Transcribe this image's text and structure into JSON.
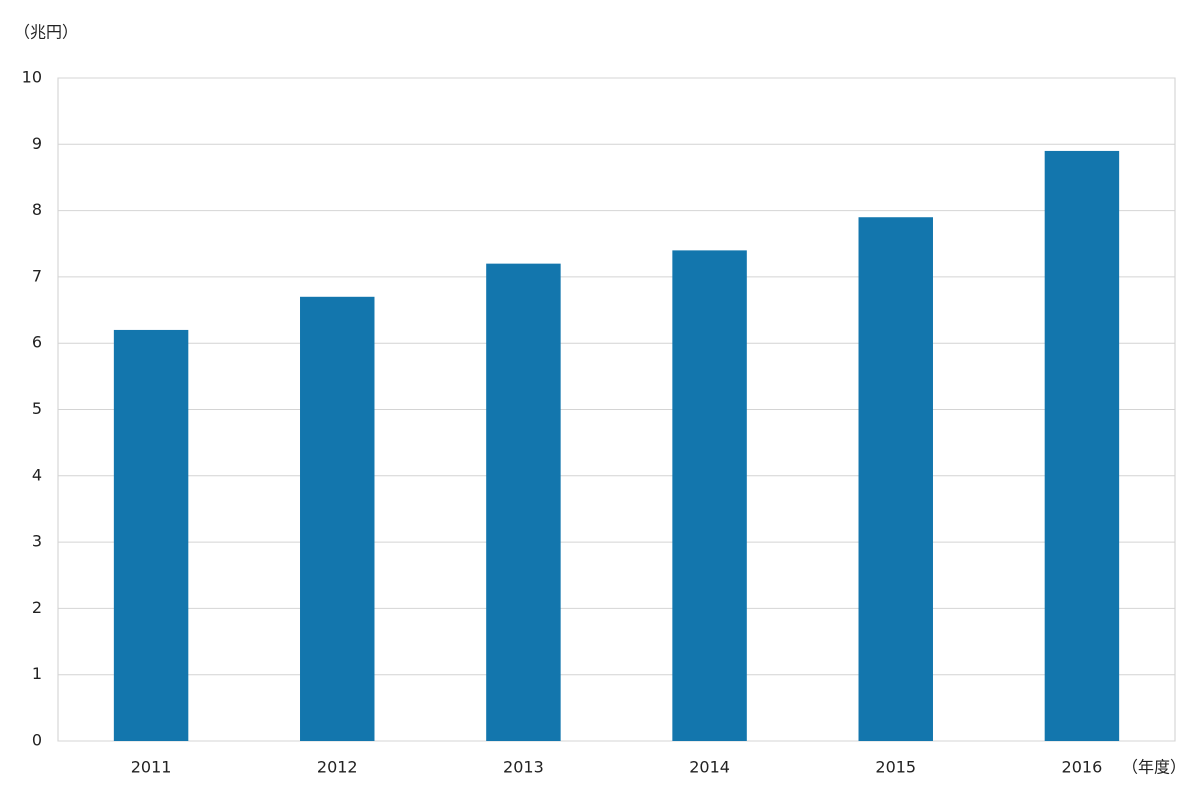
{
  "chart_data": {
    "type": "bar",
    "y_label": "（兆円）",
    "x_label": "（年度）",
    "categories": [
      "2011",
      "2012",
      "2013",
      "2014",
      "2015",
      "2016"
    ],
    "values": [
      6.2,
      6.7,
      7.2,
      7.4,
      7.9,
      8.9
    ],
    "color": "#1376ad",
    "ylim": [
      0,
      10
    ],
    "yticks": [
      0,
      1,
      2,
      3,
      4,
      5,
      6,
      7,
      8,
      9,
      10
    ],
    "grid": true
  }
}
